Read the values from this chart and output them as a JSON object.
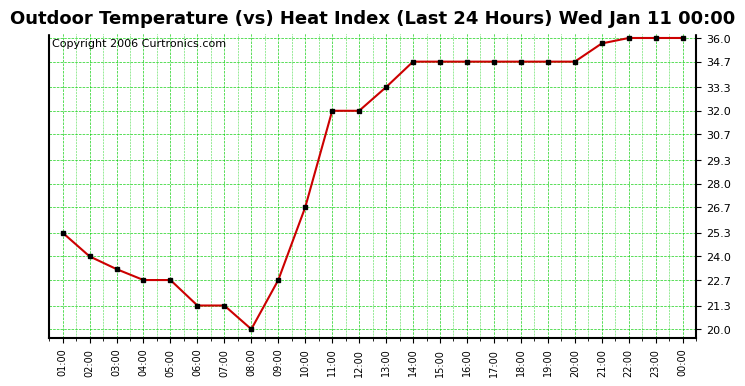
{
  "title": "Outdoor Temperature (vs) Heat Index (Last 24 Hours) Wed Jan 11 00:00",
  "copyright": "Copyright 2006 Curtronics.com",
  "x_labels": [
    "01:00",
    "02:00",
    "03:00",
    "04:00",
    "05:00",
    "06:00",
    "07:00",
    "08:00",
    "09:00",
    "10:00",
    "11:00",
    "12:00",
    "13:00",
    "14:00",
    "15:00",
    "16:00",
    "17:00",
    "18:00",
    "19:00",
    "20:00",
    "21:00",
    "22:00",
    "23:00",
    "00:00"
  ],
  "y_values": [
    25.3,
    24.0,
    23.3,
    22.7,
    22.7,
    21.3,
    21.3,
    20.0,
    22.7,
    26.7,
    32.0,
    32.0,
    33.3,
    34.7,
    34.7,
    34.7,
    34.7,
    34.7,
    34.7,
    34.7,
    35.7,
    36.0,
    36.0,
    36.0
  ],
  "y_ticks": [
    20.0,
    21.3,
    22.7,
    24.0,
    25.3,
    26.7,
    28.0,
    29.3,
    30.7,
    32.0,
    33.3,
    34.7,
    36.0
  ],
  "ylim": [
    19.5,
    36.5
  ],
  "line_color": "#cc0000",
  "marker_color": "#000000",
  "bg_color": "#ffffff",
  "plot_bg_color": "#ffffff",
  "grid_color_major": "#888888",
  "grid_color_minor": "#00cc00",
  "title_fontsize": 13,
  "copyright_fontsize": 8
}
